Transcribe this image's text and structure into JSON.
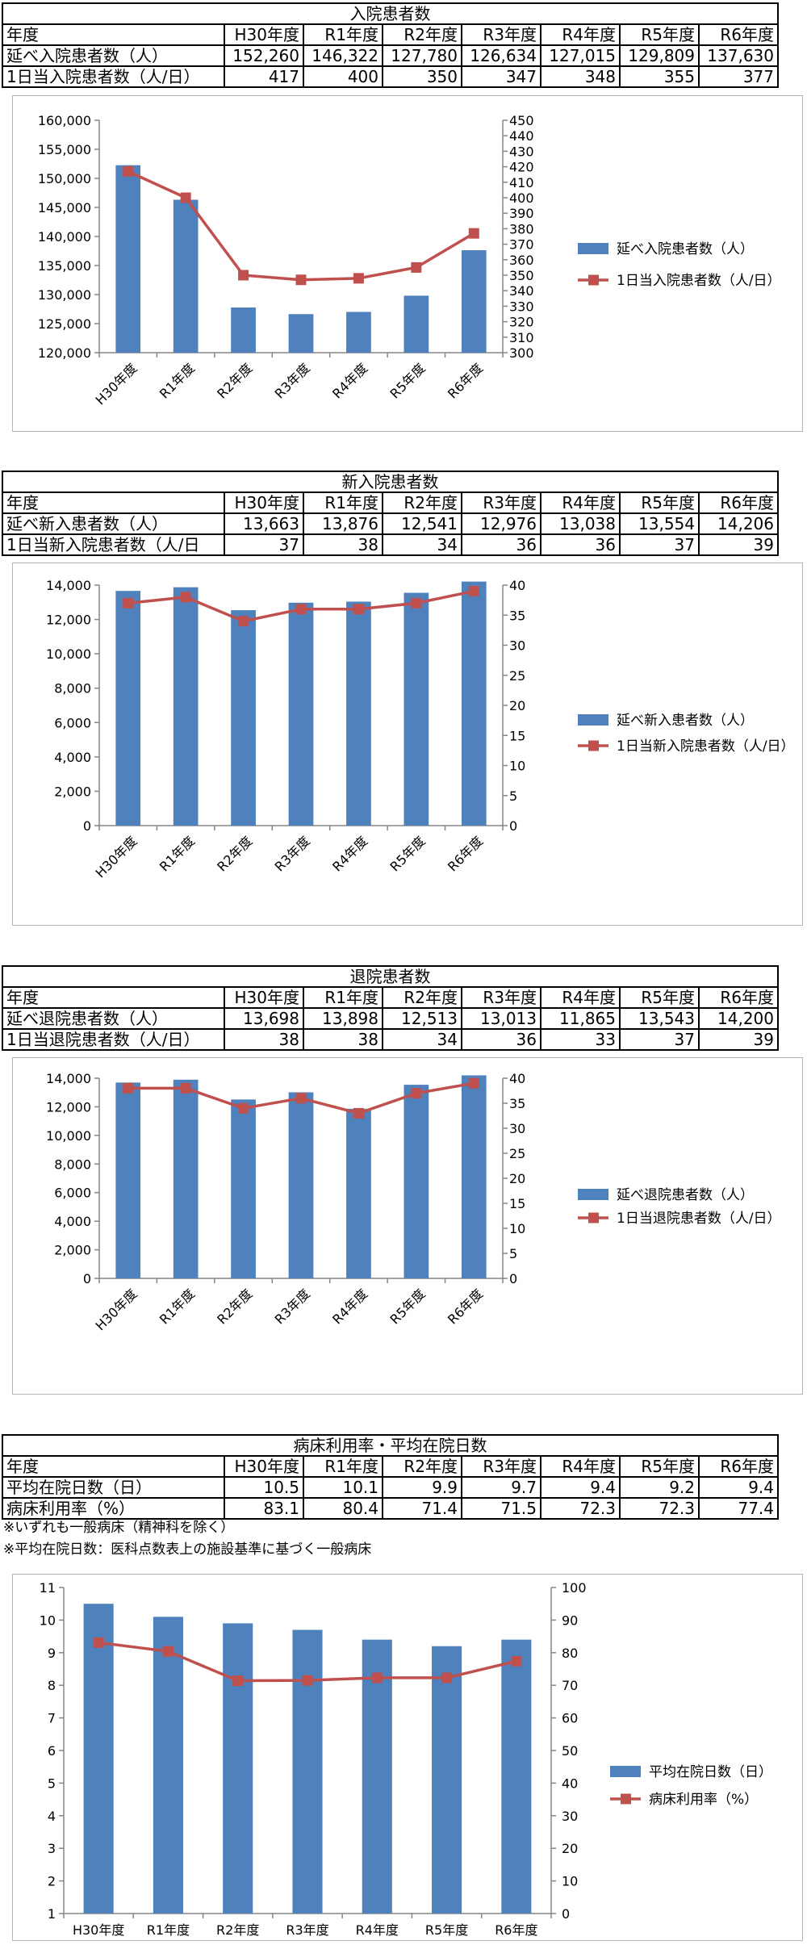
{
  "tables": [
    {
      "title": "入院患者数",
      "header": [
        "年度",
        "H30年度",
        "R1年度",
        "R2年度",
        "R3年度",
        "R4年度",
        "R5年度",
        "R6年度"
      ],
      "rows": [
        [
          "延べ入院患者数（人）",
          "152,260",
          "146,322",
          "127,780",
          "126,634",
          "127,015",
          "129,809",
          "137,630"
        ],
        [
          "1日当入院患者数（人/日）",
          "417",
          "400",
          "350",
          "347",
          "348",
          "355",
          "377"
        ]
      ]
    },
    {
      "title": "新入院患者数",
      "header": [
        "年度",
        "H30年度",
        "R1年度",
        "R2年度",
        "R3年度",
        "R4年度",
        "R5年度",
        "R6年度"
      ],
      "rows": [
        [
          "延べ新入患者数（人）",
          "13,663",
          "13,876",
          "12,541",
          "12,976",
          "13,038",
          "13,554",
          "14,206"
        ],
        [
          "1日当新入院患者数（人/日",
          "37",
          "38",
          "34",
          "36",
          "36",
          "37",
          "39"
        ]
      ]
    },
    {
      "title": "退院患者数",
      "header": [
        "年度",
        "H30年度",
        "R1年度",
        "R2年度",
        "R3年度",
        "R4年度",
        "R5年度",
        "R6年度"
      ],
      "rows": [
        [
          "延べ退院患者数（人）",
          "13,698",
          "13,898",
          "12,513",
          "13,013",
          "11,865",
          "13,543",
          "14,200"
        ],
        [
          "1日当退院患者数（人/日）",
          "38",
          "38",
          "34",
          "36",
          "33",
          "37",
          "39"
        ]
      ]
    },
    {
      "title": "病床利用率・平均在院日数",
      "header": [
        "年度",
        "H30年度",
        "R1年度",
        "R2年度",
        "R3年度",
        "R4年度",
        "R5年度",
        "R6年度"
      ],
      "rows": [
        [
          "平均在院日数（日）",
          "10.5",
          "10.1",
          "9.9",
          "9.7",
          "9.4",
          "9.2",
          "9.4"
        ],
        [
          "病床利用率（%）",
          "83.1",
          "80.4",
          "71.4",
          "71.5",
          "72.3",
          "72.3",
          "77.4"
        ]
      ]
    }
  ],
  "notes": [
    "※いずれも一般病床（精神科を除く）",
    "※平均在院日数：医科点数表上の施設基準に基づく一般病床"
  ],
  "chart_data": [
    {
      "type": "bar+line",
      "categories": [
        "H30年度",
        "R1年度",
        "R2年度",
        "R3年度",
        "R4年度",
        "R5年度",
        "R6年度"
      ],
      "series": [
        {
          "name": "延べ入院患者数（人）",
          "type": "bar",
          "axis": "left",
          "values": [
            152260,
            146322,
            127780,
            126634,
            127015,
            129809,
            137630
          ],
          "color": "#4f81bd"
        },
        {
          "name": "1日当入院患者数（人/日）",
          "type": "line",
          "axis": "right",
          "values": [
            417,
            400,
            350,
            347,
            348,
            355,
            377
          ],
          "color": "#c0504d"
        }
      ],
      "ylim_left": [
        120000,
        160000
      ],
      "ystep_left": 5000,
      "yfmt_left": "comma",
      "ylim_right": [
        300,
        450
      ],
      "ystep_right": 10,
      "xlabel_rotated": true,
      "legend": "right"
    },
    {
      "type": "bar+line",
      "categories": [
        "H30年度",
        "R1年度",
        "R2年度",
        "R3年度",
        "R4年度",
        "R5年度",
        "R6年度"
      ],
      "series": [
        {
          "name": "延べ新入患者数（人）",
          "type": "bar",
          "axis": "left",
          "values": [
            13663,
            13876,
            12541,
            12976,
            13038,
            13554,
            14206
          ],
          "color": "#4f81bd"
        },
        {
          "name": "1日当新入院患者数（人/日）",
          "type": "line",
          "axis": "right",
          "values": [
            37,
            38,
            34,
            36,
            36,
            37,
            39
          ],
          "color": "#c0504d"
        }
      ],
      "ylim_left": [
        0,
        14000
      ],
      "ystep_left": 2000,
      "yfmt_left": "comma",
      "ylim_right": [
        0,
        40
      ],
      "ystep_right": 5,
      "xlabel_rotated": true,
      "legend": "right"
    },
    {
      "type": "bar+line",
      "categories": [
        "H30年度",
        "R1年度",
        "R2年度",
        "R3年度",
        "R4年度",
        "R5年度",
        "R6年度"
      ],
      "series": [
        {
          "name": "延べ退院患者数（人）",
          "type": "bar",
          "axis": "left",
          "values": [
            13698,
            13898,
            12513,
            13013,
            11865,
            13543,
            14200
          ],
          "color": "#4f81bd"
        },
        {
          "name": "1日当退院患者数（人/日）",
          "type": "line",
          "axis": "right",
          "values": [
            38,
            38,
            34,
            36,
            33,
            37,
            39
          ],
          "color": "#c0504d"
        }
      ],
      "ylim_left": [
        0,
        14000
      ],
      "ystep_left": 2000,
      "yfmt_left": "comma",
      "ylim_right": [
        0,
        40
      ],
      "ystep_right": 5,
      "xlabel_rotated": true,
      "legend": "right"
    },
    {
      "type": "bar+line",
      "categories": [
        "H30年度",
        "R1年度",
        "R2年度",
        "R3年度",
        "R4年度",
        "R5年度",
        "R6年度"
      ],
      "series": [
        {
          "name": "平均在院日数（日）",
          "type": "bar",
          "axis": "left",
          "values": [
            10.5,
            10.1,
            9.9,
            9.7,
            9.4,
            9.2,
            9.4
          ],
          "color": "#4f81bd"
        },
        {
          "name": "病床利用率（%）",
          "type": "line",
          "axis": "right",
          "values": [
            83.1,
            80.4,
            71.4,
            71.5,
            72.3,
            72.3,
            77.4
          ],
          "color": "#c0504d"
        }
      ],
      "ylim_left": [
        1,
        11
      ],
      "ystep_left": 1,
      "yfmt_left": "plain",
      "ylim_right": [
        0,
        100
      ],
      "ystep_right": 10,
      "xlabel_rotated": false,
      "legend": "right"
    }
  ]
}
